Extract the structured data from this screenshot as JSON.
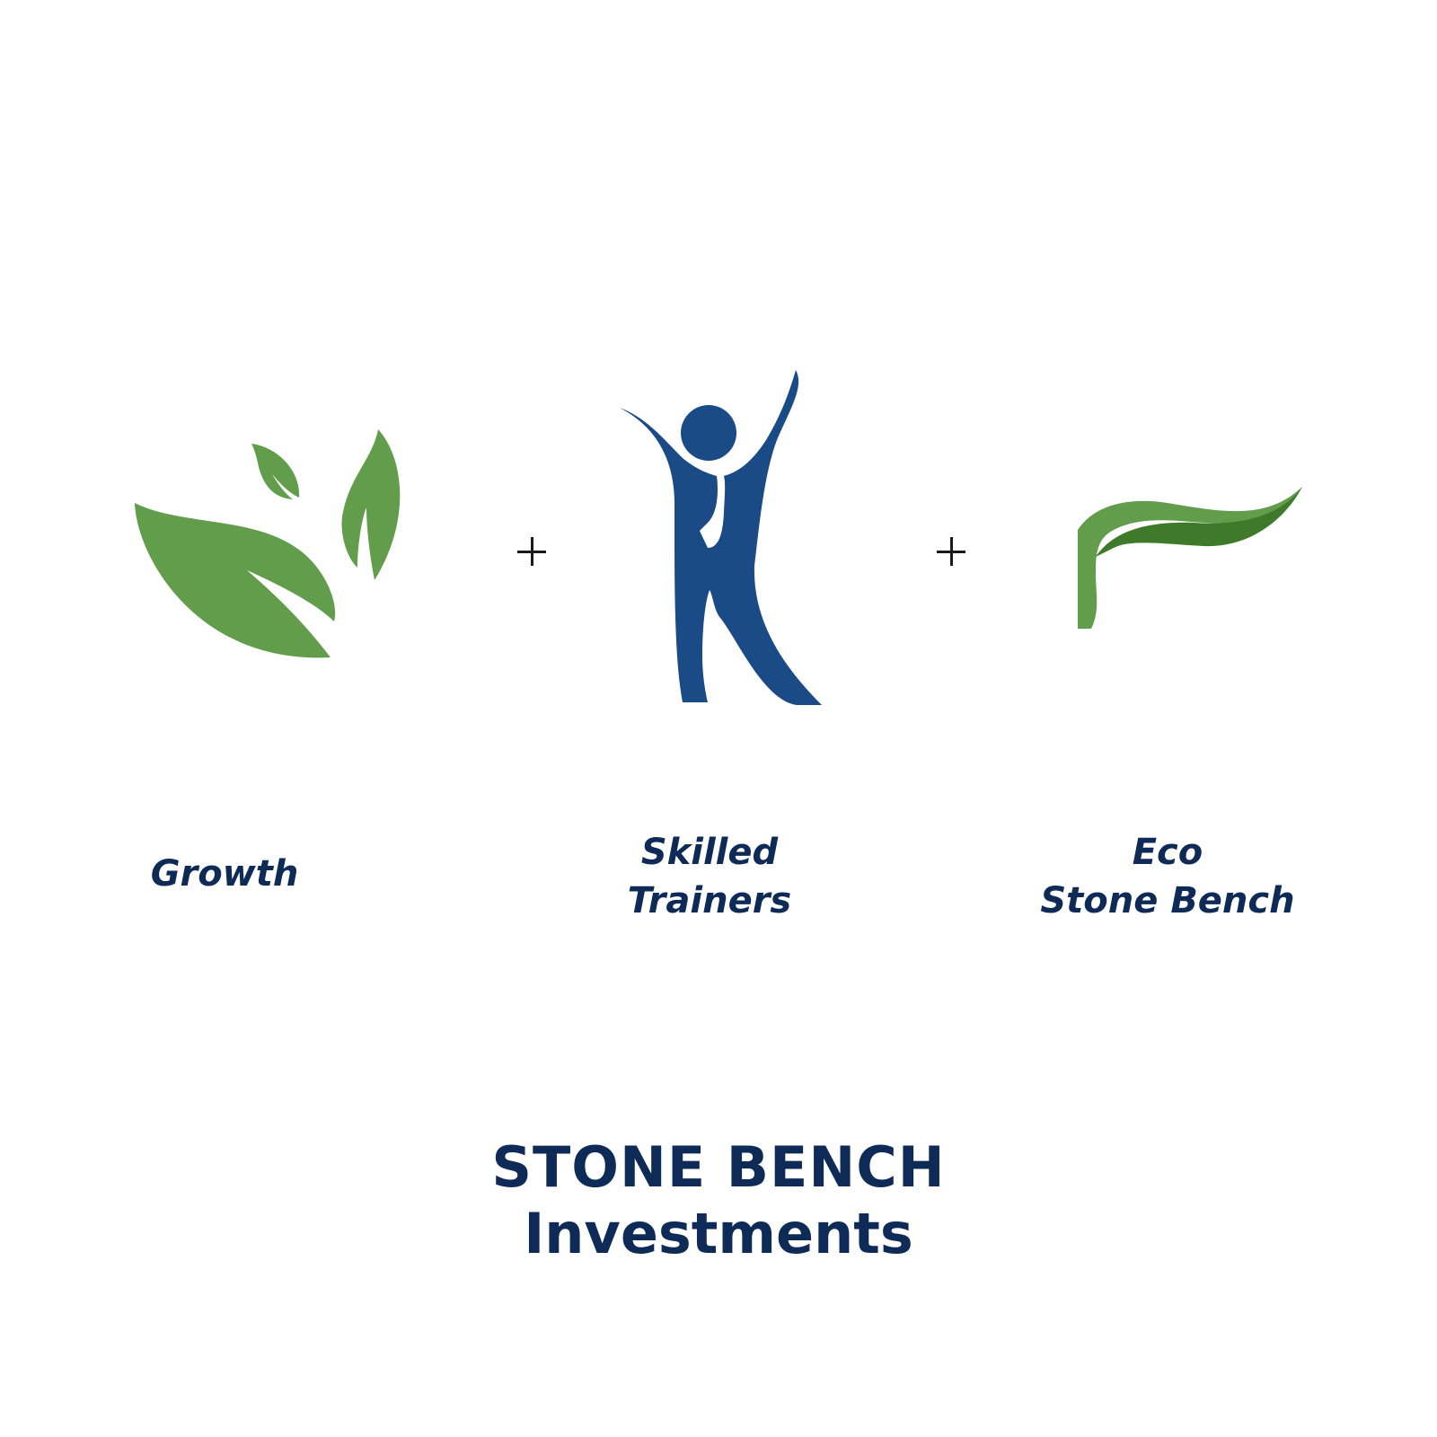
{
  "colors": {
    "leaf_green": "#629d4c",
    "leaf_dark_green": "#3f7a2a",
    "navy": "#1a4b87",
    "text_navy": "#0e2a56",
    "plus_sign": "#1a1a1a",
    "background": "#ffffff"
  },
  "icons": {
    "growth": "leaves-icon",
    "trainers": "person-arms-raised-icon",
    "eco": "leaf-swoosh-icon",
    "operator": "plus-icon"
  },
  "captions": {
    "growth": "Growth",
    "skilled_line1": "Skilled",
    "skilled_line2": "Trainers",
    "eco_line1": "Eco",
    "eco_line2": "Stone Bench"
  },
  "brand": {
    "line1": "STONE BENCH",
    "line2": "Investments"
  }
}
